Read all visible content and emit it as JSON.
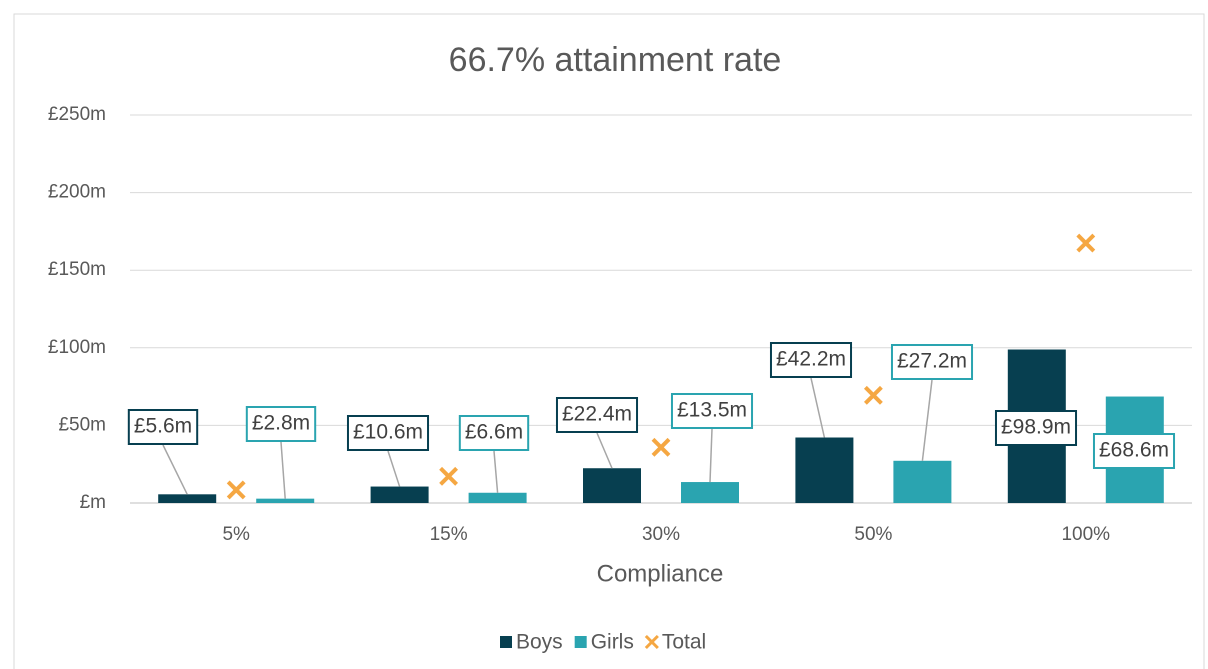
{
  "chart_data": {
    "type": "bar",
    "title": "66.7% attainment rate",
    "x_label": "Compliance",
    "categories": [
      "5%",
      "15%",
      "30%",
      "50%",
      "100%"
    ],
    "series": [
      {
        "name": "Boys",
        "type": "bar",
        "color": "#073f50",
        "values": [
          5.6,
          10.6,
          22.4,
          42.2,
          98.9
        ],
        "value_labels": [
          "£5.6m",
          "£10.6m",
          "£22.4m",
          "£42.2m",
          "£98.9m"
        ]
      },
      {
        "name": "Girls",
        "type": "bar",
        "color": "#2aa4b0",
        "values": [
          2.8,
          6.6,
          13.5,
          27.2,
          68.6
        ],
        "value_labels": [
          "£2.8m",
          "£6.6m",
          "£13.5m",
          "£27.2m",
          "£68.6m"
        ]
      },
      {
        "name": "Total",
        "type": "scatter",
        "marker": "x",
        "color": "#f5a742",
        "values": [
          8.4,
          17.2,
          35.9,
          69.4,
          167.5
        ]
      }
    ],
    "ylim": [
      0,
      250
    ],
    "yticks": [
      {
        "value": 0,
        "label": "£m"
      },
      {
        "value": 50,
        "label": "£50m"
      },
      {
        "value": 100,
        "label": "£100m"
      },
      {
        "value": 150,
        "label": "£150m"
      },
      {
        "value": 200,
        "label": "£200m"
      },
      {
        "value": 250,
        "label": "£250m"
      }
    ],
    "grid": true,
    "legend": "bottom"
  }
}
